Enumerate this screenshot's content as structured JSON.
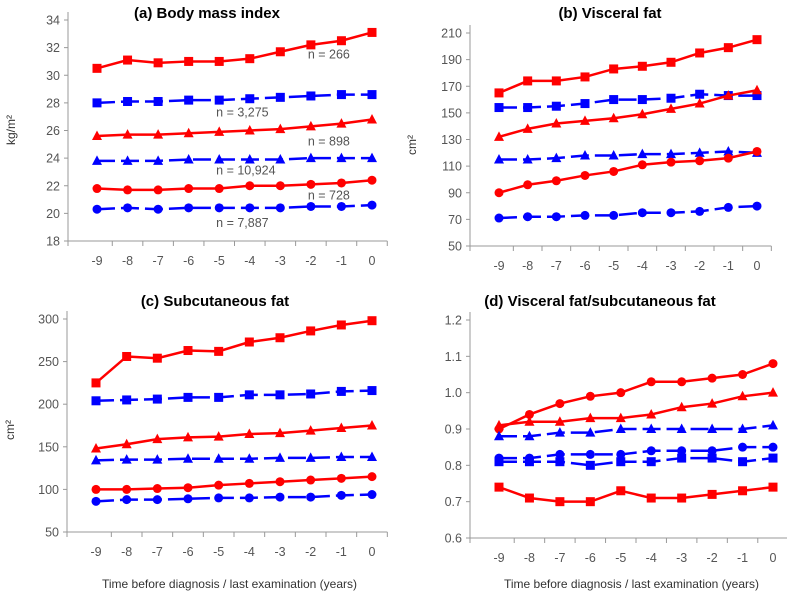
{
  "colors": {
    "red": "#ff0000",
    "blue": "#0000ff",
    "axis": "#999999"
  },
  "chart_data": [
    {
      "type": "line",
      "title": "(a) Body mass index",
      "xlabel": "",
      "ylabel": "kg/m²",
      "x": [
        -9,
        -8,
        -7,
        -6,
        -5,
        -4,
        -3,
        -2,
        -1,
        0
      ],
      "ylim": [
        18,
        34
      ],
      "ystep": 2,
      "ydecimals": 0,
      "yticks": [
        "18",
        "20",
        "22",
        "24",
        "26",
        "28",
        "30",
        "32",
        "34"
      ],
      "series": [
        {
          "name": "red-square",
          "color": "red",
          "marker": "square",
          "dashed": false,
          "values": [
            30.5,
            31.1,
            30.9,
            31.0,
            31.0,
            31.2,
            31.7,
            32.2,
            32.5,
            33.1
          ]
        },
        {
          "name": "blue-square",
          "color": "blue",
          "marker": "square",
          "dashed": true,
          "values": [
            28.0,
            28.1,
            28.1,
            28.2,
            28.2,
            28.3,
            28.4,
            28.5,
            28.6,
            28.6
          ]
        },
        {
          "name": "red-triangle",
          "color": "red",
          "marker": "triangle",
          "dashed": false,
          "values": [
            25.6,
            25.7,
            25.7,
            25.8,
            25.9,
            26.0,
            26.1,
            26.3,
            26.5,
            26.8
          ]
        },
        {
          "name": "blue-triangle",
          "color": "blue",
          "marker": "triangle",
          "dashed": true,
          "values": [
            23.8,
            23.8,
            23.8,
            23.9,
            23.9,
            23.9,
            23.9,
            24.0,
            24.0,
            24.0
          ]
        },
        {
          "name": "red-circle",
          "color": "red",
          "marker": "circle",
          "dashed": false,
          "values": [
            21.8,
            21.7,
            21.7,
            21.8,
            21.8,
            22.0,
            22.0,
            22.1,
            22.2,
            22.4
          ]
        },
        {
          "name": "blue-circle",
          "color": "blue",
          "marker": "circle",
          "dashed": true,
          "values": [
            20.3,
            20.4,
            20.3,
            20.4,
            20.4,
            20.4,
            20.4,
            20.5,
            20.5,
            20.6
          ]
        }
      ],
      "annotations": [
        {
          "text": "n = 266",
          "x": -2.1,
          "y": 31.5
        },
        {
          "text": "n = 3,275",
          "x": -5.1,
          "y": 27.3
        },
        {
          "text": "n = 898",
          "x": -2.1,
          "y": 25.2
        },
        {
          "text": "n = 10,924",
          "x": -5.1,
          "y": 23.1
        },
        {
          "text": "n = 728",
          "x": -2.1,
          "y": 21.3
        },
        {
          "text": "n = 7,887",
          "x": -5.1,
          "y": 19.3
        }
      ]
    },
    {
      "type": "line",
      "title": "(b) Visceral fat",
      "xlabel": "",
      "ylabel": "cm²",
      "x": [
        -9,
        -8,
        -7,
        -6,
        -5,
        -4,
        -3,
        -2,
        -1,
        0
      ],
      "ylim": [
        50,
        210
      ],
      "ystep": 20,
      "ydecimals": 0,
      "yticks": [
        "50",
        "70",
        "90",
        "110",
        "130",
        "150",
        "170",
        "190",
        "210"
      ],
      "series": [
        {
          "name": "red-square",
          "color": "red",
          "marker": "square",
          "dashed": false,
          "values": [
            165,
            174,
            174,
            177,
            183,
            185,
            188,
            195,
            199,
            205
          ]
        },
        {
          "name": "blue-square",
          "color": "blue",
          "marker": "square",
          "dashed": true,
          "values": [
            154,
            154,
            155,
            157,
            160,
            160,
            161,
            164,
            163,
            163
          ]
        },
        {
          "name": "red-triangle",
          "color": "red",
          "marker": "triangle",
          "dashed": false,
          "values": [
            132,
            138,
            142,
            144,
            146,
            149,
            153,
            157,
            163,
            167
          ]
        },
        {
          "name": "blue-triangle",
          "color": "blue",
          "marker": "triangle",
          "dashed": true,
          "values": [
            115,
            115,
            116,
            118,
            118,
            119,
            119,
            120,
            121,
            120
          ]
        },
        {
          "name": "red-circle",
          "color": "red",
          "marker": "circle",
          "dashed": false,
          "values": [
            90,
            96,
            99,
            103,
            106,
            111,
            113,
            114,
            116,
            121
          ]
        },
        {
          "name": "blue-circle",
          "color": "blue",
          "marker": "circle",
          "dashed": true,
          "values": [
            71,
            72,
            72,
            73,
            73,
            75,
            75,
            76,
            79,
            80
          ]
        }
      ],
      "annotations": []
    },
    {
      "type": "line",
      "title": "(c) Subcutaneous fat",
      "xlabel": "Time before diagnosis / last examination (years)",
      "ylabel": "cm²",
      "x": [
        -9,
        -8,
        -7,
        -6,
        -5,
        -4,
        -3,
        -2,
        -1,
        0
      ],
      "ylim": [
        50,
        300
      ],
      "ystep": 50,
      "ydecimals": 0,
      "yticks": [
        "50",
        "100",
        "150",
        "200",
        "250",
        "300"
      ],
      "series": [
        {
          "name": "red-square",
          "color": "red",
          "marker": "square",
          "dashed": false,
          "values": [
            225,
            256,
            254,
            263,
            262,
            273,
            278,
            286,
            293,
            298
          ]
        },
        {
          "name": "blue-square",
          "color": "blue",
          "marker": "square",
          "dashed": true,
          "values": [
            204,
            205,
            206,
            208,
            208,
            211,
            211,
            212,
            215,
            216
          ]
        },
        {
          "name": "red-triangle",
          "color": "red",
          "marker": "triangle",
          "dashed": false,
          "values": [
            148,
            153,
            159,
            161,
            162,
            165,
            166,
            169,
            172,
            175
          ]
        },
        {
          "name": "blue-triangle",
          "color": "blue",
          "marker": "triangle",
          "dashed": true,
          "values": [
            134,
            135,
            135,
            136,
            136,
            136,
            137,
            137,
            138,
            138
          ]
        },
        {
          "name": "red-circle",
          "color": "red",
          "marker": "circle",
          "dashed": false,
          "values": [
            100,
            100,
            101,
            102,
            105,
            107,
            109,
            111,
            113,
            115
          ]
        },
        {
          "name": "blue-circle",
          "color": "blue",
          "marker": "circle",
          "dashed": true,
          "values": [
            86,
            88,
            88,
            89,
            90,
            90,
            91,
            91,
            93,
            94
          ]
        }
      ],
      "annotations": []
    },
    {
      "type": "line",
      "title": "(d) Visceral fat/subcutaneous fat",
      "xlabel": "Time before diagnosis / last examination (years)",
      "ylabel": "",
      "x": [
        -9,
        -8,
        -7,
        -6,
        -5,
        -4,
        -3,
        -2,
        -1,
        0
      ],
      "ylim": [
        0.6,
        1.2
      ],
      "ystep": 0.1,
      "ydecimals": 1,
      "yticks": [
        "0.6",
        "0.7",
        "0.8",
        "0.9",
        "1.0",
        "1.1",
        "1.2"
      ],
      "series": [
        {
          "name": "red-circle",
          "color": "red",
          "marker": "circle",
          "dashed": false,
          "values": [
            0.9,
            0.94,
            0.97,
            0.99,
            1.0,
            1.03,
            1.03,
            1.04,
            1.05,
            1.08
          ]
        },
        {
          "name": "red-triangle",
          "color": "red",
          "marker": "triangle",
          "dashed": false,
          "values": [
            0.91,
            0.92,
            0.92,
            0.93,
            0.93,
            0.94,
            0.96,
            0.97,
            0.99,
            1.0
          ]
        },
        {
          "name": "blue-triangle",
          "color": "blue",
          "marker": "triangle",
          "dashed": true,
          "values": [
            0.88,
            0.88,
            0.89,
            0.89,
            0.9,
            0.9,
            0.9,
            0.9,
            0.9,
            0.91
          ]
        },
        {
          "name": "blue-circle",
          "color": "blue",
          "marker": "circle",
          "dashed": true,
          "values": [
            0.82,
            0.82,
            0.83,
            0.83,
            0.83,
            0.84,
            0.84,
            0.84,
            0.85,
            0.85
          ]
        },
        {
          "name": "blue-square",
          "color": "blue",
          "marker": "square",
          "dashed": true,
          "values": [
            0.81,
            0.81,
            0.81,
            0.8,
            0.81,
            0.81,
            0.82,
            0.82,
            0.81,
            0.82
          ]
        },
        {
          "name": "red-square",
          "color": "red",
          "marker": "square",
          "dashed": false,
          "values": [
            0.74,
            0.71,
            0.7,
            0.7,
            0.73,
            0.71,
            0.71,
            0.72,
            0.73,
            0.74
          ]
        }
      ],
      "annotations": []
    }
  ]
}
